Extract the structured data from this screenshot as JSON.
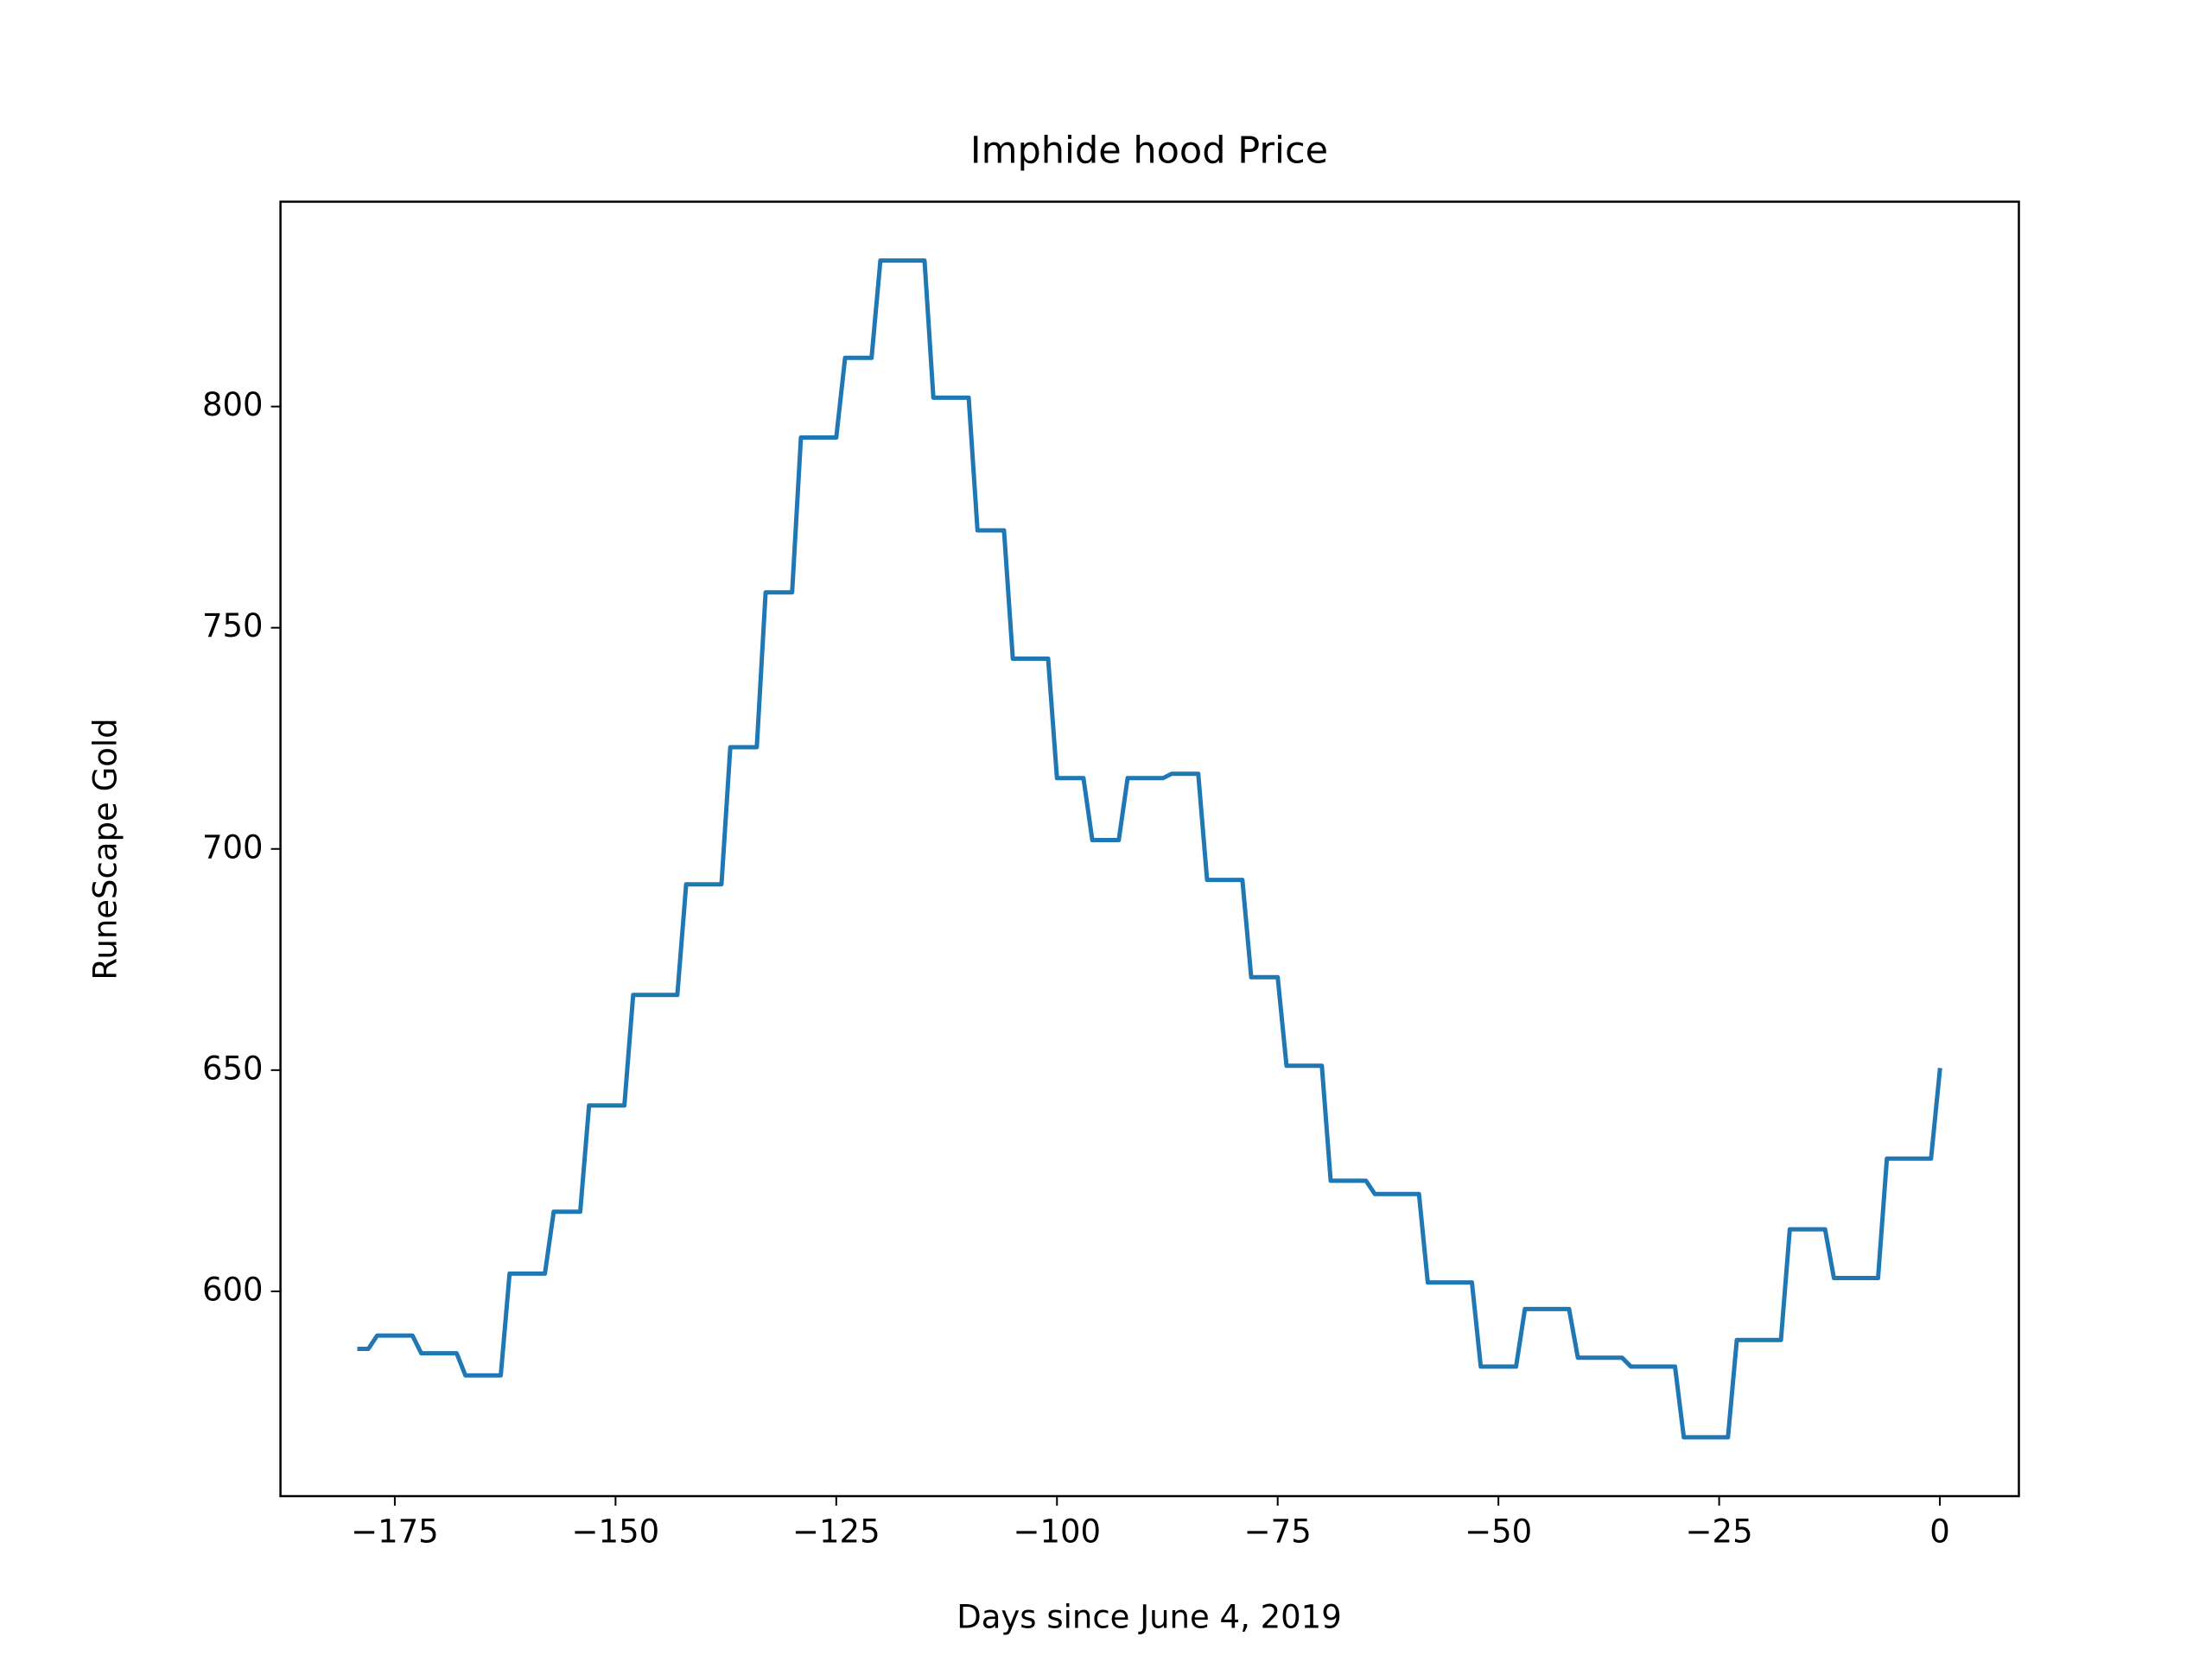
{
  "chart_data": {
    "type": "line",
    "title": "Imphide hood Price",
    "xlabel": "Days since June 4, 2019",
    "ylabel": "RuneScape Gold",
    "x": [
      -179,
      -178,
      -177,
      -176,
      -175,
      -174,
      -173,
      -172,
      -171,
      -170,
      -169,
      -168,
      -167,
      -166,
      -165,
      -164,
      -163,
      -162,
      -161,
      -160,
      -159,
      -158,
      -157,
      -156,
      -155,
      -154,
      -153,
      -152,
      -151,
      -150,
      -149,
      -148,
      -147,
      -146,
      -145,
      -144,
      -143,
      -142,
      -141,
      -140,
      -139,
      -138,
      -137,
      -136,
      -135,
      -134,
      -133,
      -132,
      -131,
      -130,
      -129,
      -128,
      -127,
      -126,
      -125,
      -124,
      -123,
      -122,
      -121,
      -120,
      -119,
      -118,
      -117,
      -116,
      -115,
      -114,
      -113,
      -112,
      -111,
      -110,
      -109,
      -108,
      -107,
      -106,
      -105,
      -104,
      -103,
      -102,
      -101,
      -100,
      -99,
      -98,
      -97,
      -96,
      -95,
      -94,
      -93,
      -92,
      -91,
      -90,
      -89,
      -88,
      -87,
      -86,
      -85,
      -84,
      -83,
      -82,
      -81,
      -80,
      -79,
      -78,
      -77,
      -76,
      -75,
      -74,
      -73,
      -72,
      -71,
      -70,
      -69,
      -68,
      -67,
      -66,
      -65,
      -64,
      -63,
      -62,
      -61,
      -60,
      -59,
      -58,
      -57,
      -56,
      -55,
      -54,
      -53,
      -52,
      -51,
      -50,
      -49,
      -48,
      -47,
      -46,
      -45,
      -44,
      -43,
      -42,
      -41,
      -40,
      -39,
      -38,
      -37,
      -36,
      -35,
      -34,
      -33,
      -32,
      -31,
      -30,
      -29,
      -28,
      -27,
      -26,
      -25,
      -24,
      -23,
      -22,
      -21,
      -20,
      -19,
      -18,
      -17,
      -16,
      -15,
      -14,
      -13,
      -12,
      -11,
      -10,
      -9,
      -8,
      -7,
      -6,
      -5,
      -4,
      -3,
      -2,
      -1,
      0
    ],
    "series": [
      {
        "color": "#1f77b4",
        "values": [
          587,
          587,
          590,
          590,
          590,
          590,
          590,
          586,
          586,
          586,
          586,
          586,
          581,
          581,
          581,
          581,
          581,
          604,
          604,
          604,
          604,
          604,
          618,
          618,
          618,
          618,
          642,
          642,
          642,
          642,
          642,
          667,
          667,
          667,
          667,
          667,
          667,
          692,
          692,
          692,
          692,
          692,
          723,
          723,
          723,
          723,
          758,
          758,
          758,
          758,
          793,
          793,
          793,
          793,
          793,
          811,
          811,
          811,
          811,
          833,
          833,
          833,
          833,
          833,
          833,
          802,
          802,
          802,
          802,
          802,
          772,
          772,
          772,
          772,
          743,
          743,
          743,
          743,
          743,
          716,
          716,
          716,
          716,
          702,
          702,
          702,
          702,
          716,
          716,
          716,
          716,
          716,
          717,
          717,
          717,
          717,
          693,
          693,
          693,
          693,
          693,
          671,
          671,
          671,
          671,
          651,
          651,
          651,
          651,
          651,
          625,
          625,
          625,
          625,
          625,
          622,
          622,
          622,
          622,
          622,
          622,
          602,
          602,
          602,
          602,
          602,
          602,
          583,
          583,
          583,
          583,
          583,
          596,
          596,
          596,
          596,
          596,
          596,
          585,
          585,
          585,
          585,
          585,
          585,
          583,
          583,
          583,
          583,
          583,
          583,
          567,
          567,
          567,
          567,
          567,
          567,
          589,
          589,
          589,
          589,
          589,
          589,
          614,
          614,
          614,
          614,
          614,
          603,
          603,
          603,
          603,
          603,
          603,
          630,
          630,
          630,
          630,
          630,
          630,
          650
        ]
      }
    ],
    "xlim": [
      -187.95,
      8.95
    ],
    "xticks": [
      {
        "value": -175,
        "label": "−175"
      },
      {
        "value": -150,
        "label": "−150"
      },
      {
        "value": -125,
        "label": "−125"
      },
      {
        "value": -100,
        "label": "−100"
      },
      {
        "value": -75,
        "label": "−75"
      },
      {
        "value": -50,
        "label": "−50"
      },
      {
        "value": -25,
        "label": "−25"
      },
      0
    ],
    "ylim": [
      553.7,
      846.3
    ],
    "yticks": [
      600,
      650,
      700,
      750,
      800
    ]
  }
}
